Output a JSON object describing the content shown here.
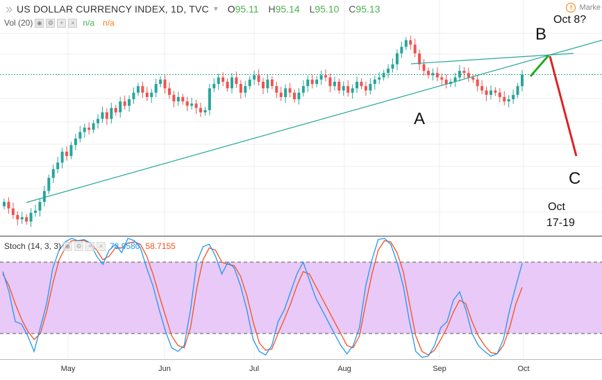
{
  "header": {
    "title": "US DOLLAR CURRENCY INDEX, 1D, TVC",
    "ohlc": [
      {
        "k": "O",
        "v": "95.11"
      },
      {
        "k": "H",
        "v": "95.14"
      },
      {
        "k": "L",
        "v": "95.10"
      },
      {
        "k": "C",
        "v": "95.13"
      }
    ],
    "market_label": "Marke"
  },
  "volume": {
    "label": "Vol (20)",
    "na1": "n/a",
    "na2": "n/a"
  },
  "stoch": {
    "label": "Stoch (14, 3, 3)",
    "k_value": "78.9580",
    "d_value": "58.7155"
  },
  "annotations": {
    "A": "A",
    "B": "B",
    "C": "C",
    "oct8": "Oct 8?",
    "oct1719_a": "Oct",
    "oct1719_b": "17-19"
  },
  "colors": {
    "up": "#26a69a",
    "down": "#ef5350",
    "k_line": "#2196f3",
    "d_line": "#f4511e",
    "stoch_band": "#e8c9f7",
    "trend": "#26a69a",
    "proj_up": "#22aa22",
    "proj_down": "#dd2222"
  },
  "chart_data": {
    "type": "candlestick",
    "title": "US DOLLAR CURRENCY INDEX, 1D, TVC",
    "x_tick_labels": [
      "May",
      "Jun",
      "Jul",
      "Aug",
      "Sep",
      "Oct"
    ],
    "price_panel": {
      "closes": [
        89.3,
        89.0,
        88.7,
        88.5,
        88.6,
        88.4,
        88.8,
        88.9,
        89.3,
        89.8,
        90.4,
        90.8,
        91.1,
        91.6,
        91.4,
        91.9,
        92.2,
        92.5,
        92.7,
        92.6,
        92.9,
        93.1,
        93.4,
        93.1,
        93.6,
        93.4,
        93.9,
        93.7,
        94.0,
        94.3,
        94.6,
        94.3,
        94.1,
        94.3,
        94.7,
        94.9,
        94.5,
        94.2,
        93.9,
        94.1,
        93.9,
        93.7,
        93.8,
        93.6,
        93.4,
        93.5,
        94.5,
        94.7,
        95.0,
        94.8,
        94.5,
        95.0,
        94.7,
        94.3,
        94.6,
        94.9,
        95.1,
        94.8,
        94.5,
        94.9,
        94.6,
        94.3,
        94.1,
        94.5,
        94.3,
        94.0,
        94.3,
        94.6,
        94.9,
        94.7,
        94.9,
        95.1,
        95.0,
        94.6,
        94.8,
        94.4,
        94.6,
        94.3,
        94.5,
        94.8,
        94.6,
        94.4,
        94.7,
        94.9,
        95.0,
        95.2,
        95.4,
        95.6,
        96.1,
        96.4,
        96.7,
        96.5,
        96.1,
        95.6,
        95.3,
        95.1,
        95.2,
        95.0,
        94.9,
        94.7,
        94.8,
        95.0,
        95.3,
        95.2,
        95.0,
        94.9,
        94.6,
        94.4,
        94.2,
        94.4,
        94.3,
        94.1,
        93.9,
        94.0,
        94.2,
        94.6,
        95.13
      ]
    },
    "stoch_panel": {
      "k": [
        72,
        55,
        30,
        28,
        18,
        5,
        25,
        45,
        75,
        90,
        97,
        100,
        98,
        99,
        96,
        85,
        78,
        90,
        95,
        88,
        100,
        98,
        92,
        75,
        60,
        40,
        22,
        8,
        5,
        10,
        40,
        80,
        93,
        95,
        85,
        70,
        80,
        75,
        60,
        40,
        15,
        5,
        2,
        10,
        30,
        40,
        55,
        70,
        80,
        65,
        50,
        40,
        30,
        20,
        10,
        3,
        10,
        25,
        60,
        82,
        99,
        100,
        95,
        80,
        60,
        30,
        5,
        0,
        1,
        10,
        25,
        30,
        48,
        55,
        40,
        20,
        10,
        5,
        1,
        3,
        15,
        40,
        60,
        78.96
      ],
      "d": [
        70,
        60,
        45,
        32,
        22,
        15,
        20,
        38,
        62,
        82,
        92,
        98,
        98,
        98,
        96,
        90,
        82,
        85,
        92,
        92,
        96,
        97,
        95,
        85,
        70,
        52,
        35,
        18,
        10,
        8,
        25,
        58,
        82,
        92,
        90,
        80,
        78,
        77,
        68,
        52,
        30,
        12,
        6,
        7,
        20,
        32,
        45,
        60,
        72,
        70,
        60,
        50,
        40,
        30,
        20,
        10,
        8,
        18,
        45,
        70,
        90,
        98,
        97,
        88,
        72,
        45,
        18,
        5,
        2,
        6,
        15,
        25,
        38,
        48,
        45,
        30,
        18,
        10,
        4,
        3,
        10,
        25,
        45,
        58.72
      ],
      "upper_band": 80,
      "lower_band": 20
    }
  }
}
